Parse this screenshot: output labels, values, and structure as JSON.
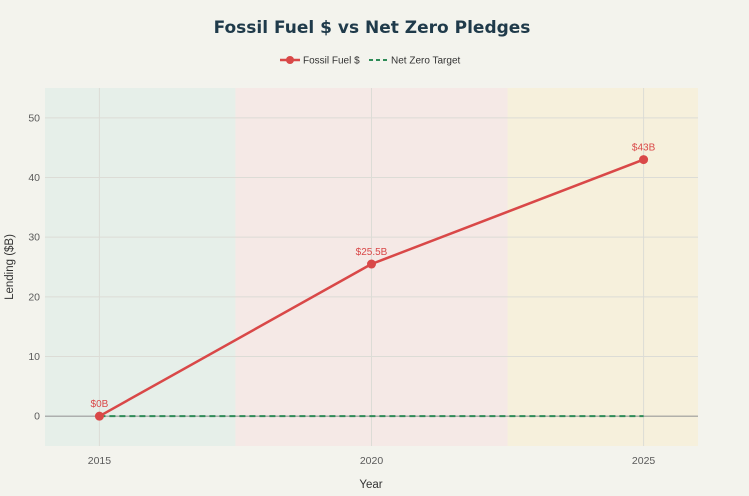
{
  "chart_data": {
    "type": "line",
    "title": "Fossil Fuel $ vs Net Zero Pledges",
    "xlabel": "Year",
    "ylabel": "Lending ($B)",
    "x": [
      2015,
      2020,
      2025
    ],
    "xlim": [
      2014,
      2026
    ],
    "ylim": [
      -5,
      55
    ],
    "x_ticks": [
      2015,
      2020,
      2025
    ],
    "y_ticks": [
      0,
      10,
      20,
      30,
      40,
      50
    ],
    "grid": true,
    "legend_position": "top-center",
    "series": [
      {
        "name": "Fossil Fuel $",
        "values": [
          0,
          25.5,
          43
        ],
        "labels": [
          "$0B",
          "$25.5B",
          "$43B"
        ],
        "color": "#d94848",
        "style": "solid-with-markers"
      },
      {
        "name": "Net Zero Target",
        "values": [
          0,
          0,
          0
        ],
        "color": "#2e8b57",
        "style": "dashed"
      }
    ],
    "background_bands": [
      {
        "x_from": 2014,
        "x_to": 2017.5,
        "color": "#e6efe9"
      },
      {
        "x_from": 2017.5,
        "x_to": 2022.5,
        "color": "#f5e9e6"
      },
      {
        "x_from": 2022.5,
        "x_to": 2026,
        "color": "#f6f0dc"
      }
    ],
    "zero_line_color": "#9a9a9a",
    "grid_color": "#dcdcd6"
  }
}
